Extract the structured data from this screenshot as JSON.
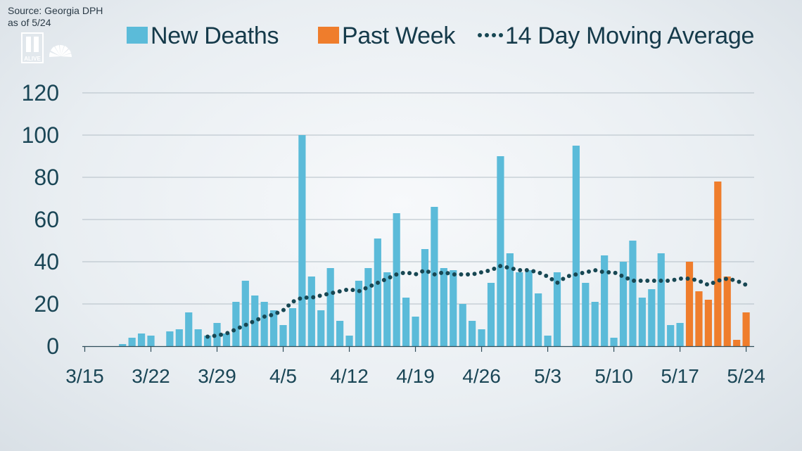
{
  "source": {
    "line1": "Source: Georgia DPH",
    "line2": "as of 5/24"
  },
  "logo": {
    "text": "ALIVE",
    "icon": "11alive-nbc-peacock-logo"
  },
  "colors": {
    "new_deaths": "#5bbbd9",
    "past_week": "#ef7d2c",
    "moving_average": "#174753",
    "grid": "#b3bec6",
    "axis_text": "#1a4656"
  },
  "chart_data": {
    "type": "bar",
    "legend": [
      "New Deaths",
      "Past Week",
      "14 Day Moving Average"
    ],
    "legend_position": "top",
    "grid": true,
    "ylim": [
      0,
      120
    ],
    "yticks": [
      0,
      20,
      40,
      60,
      80,
      100,
      120
    ],
    "xticks": [
      "3/15",
      "3/22",
      "3/29",
      "4/5",
      "4/12",
      "4/19",
      "4/26",
      "5/3",
      "5/10",
      "5/17",
      "5/24"
    ],
    "start_date": "3/15",
    "series": [
      {
        "name": "New Deaths",
        "dates": [
          "3/15",
          "3/16",
          "3/17",
          "3/18",
          "3/19",
          "3/20",
          "3/21",
          "3/22",
          "3/23",
          "3/24",
          "3/25",
          "3/26",
          "3/27",
          "3/28",
          "3/29",
          "3/30",
          "3/31",
          "4/1",
          "4/2",
          "4/3",
          "4/4",
          "4/5",
          "4/6",
          "4/7",
          "4/8",
          "4/9",
          "4/10",
          "4/11",
          "4/12",
          "4/13",
          "4/14",
          "4/15",
          "4/16",
          "4/17",
          "4/18",
          "4/19",
          "4/20",
          "4/21",
          "4/22",
          "4/23",
          "4/24",
          "4/25",
          "4/26",
          "4/27",
          "4/28",
          "4/29",
          "4/30",
          "5/1",
          "5/2",
          "5/3",
          "5/4",
          "5/5",
          "5/6",
          "5/7",
          "5/8",
          "5/9",
          "5/10",
          "5/11",
          "5/12",
          "5/13",
          "5/14",
          "5/15",
          "5/16",
          "5/17"
        ],
        "values": [
          0,
          0,
          0,
          0,
          1,
          4,
          6,
          5,
          0,
          7,
          8,
          16,
          8,
          5,
          11,
          6,
          21,
          31,
          24,
          21,
          17,
          10,
          18,
          100,
          33,
          17,
          37,
          12,
          5,
          31,
          37,
          51,
          35,
          63,
          23,
          14,
          46,
          66,
          37,
          36,
          20,
          12,
          8,
          30,
          90,
          44,
          35,
          36,
          25,
          5,
          35,
          0,
          95,
          30,
          21,
          43,
          4,
          40,
          50,
          23,
          27,
          44,
          10,
          11
        ]
      },
      {
        "name": "Past Week",
        "dates": [
          "5/18",
          "5/19",
          "5/20",
          "5/21",
          "5/22",
          "5/23",
          "5/24"
        ],
        "values": [
          40,
          26,
          22,
          78,
          33,
          3,
          16
        ]
      },
      {
        "name": "14 Day Moving Average",
        "dates": [
          "3/28",
          "3/29",
          "3/30",
          "3/31",
          "4/1",
          "4/2",
          "4/3",
          "4/4",
          "4/5",
          "4/6",
          "4/7",
          "4/8",
          "4/9",
          "4/10",
          "4/11",
          "4/12",
          "4/13",
          "4/14",
          "4/15",
          "4/16",
          "4/17",
          "4/18",
          "4/19",
          "4/20",
          "4/21",
          "4/22",
          "4/23",
          "4/24",
          "4/25",
          "4/26",
          "4/27",
          "4/28",
          "4/29",
          "4/30",
          "5/1",
          "5/2",
          "5/3",
          "5/4",
          "5/5",
          "5/6",
          "5/7",
          "5/8",
          "5/9",
          "5/10",
          "5/11",
          "5/12",
          "5/13",
          "5/14",
          "5/15",
          "5/16",
          "5/17",
          "5/18",
          "5/19",
          "5/20",
          "5/21",
          "5/22",
          "5/23",
          "5/24"
        ],
        "values": [
          4.5,
          5,
          6,
          8,
          10,
          12,
          14,
          15,
          17,
          21,
          23,
          23,
          24,
          25,
          26,
          27,
          26,
          28,
          30,
          32,
          34,
          35,
          34,
          36,
          34,
          35,
          34,
          34,
          34,
          35,
          36,
          38,
          37,
          36,
          36,
          35,
          33,
          30,
          33,
          34,
          35,
          36,
          35,
          35,
          33,
          31,
          31,
          31,
          31,
          31,
          32,
          32,
          31,
          29,
          31,
          32,
          31,
          29
        ]
      }
    ]
  }
}
